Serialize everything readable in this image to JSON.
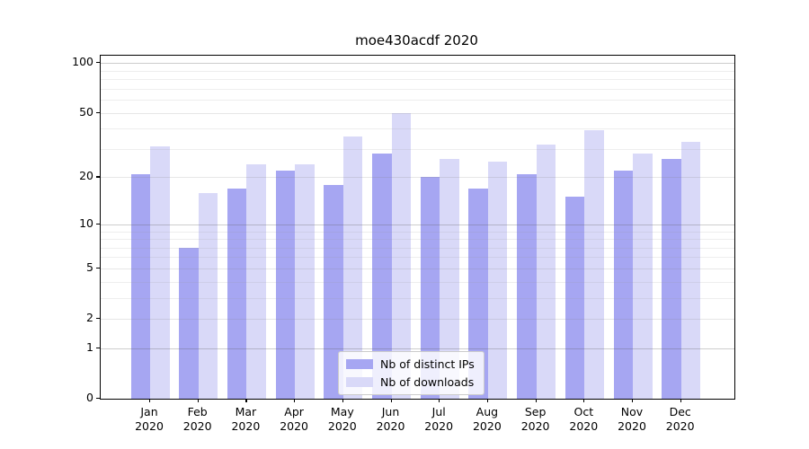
{
  "page": {
    "title": "moe430acdf 2020"
  },
  "chart_data": {
    "type": "bar",
    "title": "moe430acdf 2020",
    "categories": [
      "Jan",
      "Feb",
      "Mar",
      "Apr",
      "May",
      "Jun",
      "Jul",
      "Aug",
      "Sep",
      "Oct",
      "Nov",
      "Dec"
    ],
    "year_label": "2020",
    "series": [
      {
        "name": "Nb of distinct IPs",
        "color": "#a6a6f2",
        "values": [
          21,
          7,
          17,
          22,
          18,
          28,
          20,
          17,
          21,
          15,
          22,
          26
        ]
      },
      {
        "name": "Nb of downloads",
        "color": "#d9d9f8",
        "values": [
          31,
          16,
          24,
          24,
          36,
          50,
          26,
          25,
          32,
          39,
          28,
          33
        ]
      }
    ],
    "yscale": "log1p",
    "ylim": [
      0,
      110
    ],
    "yticks": [
      100,
      50,
      20,
      10,
      5,
      2,
      1,
      0
    ],
    "minor_yticks": [
      3,
      4,
      6,
      7,
      8,
      9,
      30,
      40,
      60,
      70,
      80,
      90
    ],
    "grid": "on",
    "legend_position": "lower-center",
    "grid_color_major": "#cccccc",
    "grid_color_minor": "#ebebeb"
  }
}
